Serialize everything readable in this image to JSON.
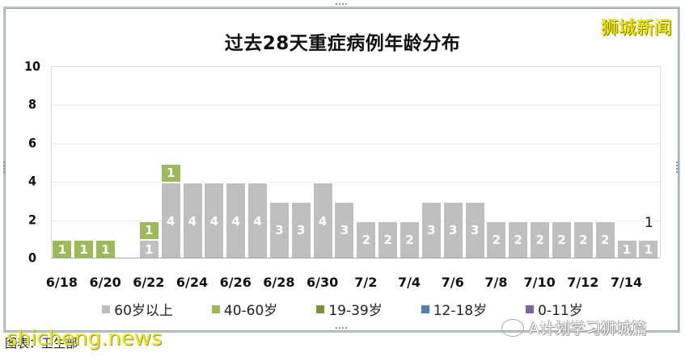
{
  "title": "过去28天重症病例年龄分布",
  "brand": "狮城新闻",
  "caption": "图表：卫生部",
  "watermarks": {
    "site": "shicheng.news",
    "wechat": "A计划学习狮城篇"
  },
  "colors": {
    "60plus": "#bfbfbf",
    "40to60": "#9bbb59",
    "19to39": "#77933c",
    "12to18": "#4f81bd",
    "0to11": "#8064a2"
  },
  "legend": [
    {
      "label": "60岁以上",
      "key": "60plus"
    },
    {
      "label": "40-60岁",
      "key": "40to60"
    },
    {
      "label": "19-39岁",
      "key": "19to39"
    },
    {
      "label": "12-18岁",
      "key": "12to18"
    },
    {
      "label": "0-11岁",
      "key": "0to11"
    }
  ],
  "chart_data": {
    "type": "bar",
    "stacked": true,
    "title": "过去28天重症病例年龄分布",
    "xlabel": "",
    "ylabel": "",
    "ylim": [
      0,
      10
    ],
    "yticks": [
      0,
      2,
      4,
      6,
      8,
      10
    ],
    "grid": true,
    "legend_position": "bottom",
    "categories": [
      "6/18",
      "6/19",
      "6/20",
      "6/21",
      "6/22",
      "6/23",
      "6/24",
      "6/25",
      "6/26",
      "6/27",
      "6/28",
      "6/29",
      "6/30",
      "7/1",
      "7/2",
      "7/3",
      "7/4",
      "7/5",
      "7/6",
      "7/7",
      "7/8",
      "7/9",
      "7/10",
      "7/11",
      "7/12",
      "7/13",
      "7/14",
      "7/15"
    ],
    "xtick_labels": [
      "6/18",
      "6/20",
      "6/22",
      "6/24",
      "6/26",
      "6/28",
      "6/30",
      "7/2",
      "7/4",
      "7/6",
      "7/8",
      "7/10",
      "7/12",
      "7/14"
    ],
    "series": [
      {
        "name": "60岁以上",
        "values": [
          0,
          0,
          0,
          0,
          1,
          4,
          4,
          4,
          4,
          4,
          3,
          3,
          4,
          3,
          2,
          2,
          2,
          3,
          3,
          3,
          2,
          2,
          2,
          2,
          2,
          2,
          1,
          1
        ]
      },
      {
        "name": "40-60岁",
        "values": [
          1,
          1,
          1,
          0,
          1,
          1,
          0,
          0,
          0,
          0,
          0,
          0,
          0,
          0,
          0,
          0,
          0,
          0,
          0,
          0,
          0,
          0,
          0,
          0,
          0,
          0,
          0,
          0
        ]
      },
      {
        "name": "19-39岁",
        "values": [
          0,
          0,
          0,
          0,
          0,
          0,
          0,
          0,
          0,
          0,
          0,
          0,
          0,
          0,
          0,
          0,
          0,
          0,
          0,
          0,
          0,
          0,
          0,
          0,
          0,
          0,
          0,
          0
        ]
      },
      {
        "name": "12-18岁",
        "values": [
          0,
          0,
          0,
          0,
          0,
          0,
          0,
          0,
          0,
          0,
          0,
          0,
          0,
          0,
          0,
          0,
          0,
          0,
          0,
          0,
          0,
          0,
          0,
          0,
          0,
          0,
          0,
          0
        ]
      },
      {
        "name": "0-11岁",
        "values": [
          0,
          0,
          0,
          0,
          0,
          0,
          0,
          0,
          0,
          0,
          0,
          0,
          0,
          0,
          0,
          0,
          0,
          0,
          0,
          0,
          0,
          0,
          0,
          0,
          0,
          0,
          0,
          0
        ]
      }
    ],
    "annotations": [
      {
        "category": "7/15",
        "text": "1",
        "note": "total label above last bar"
      }
    ]
  }
}
